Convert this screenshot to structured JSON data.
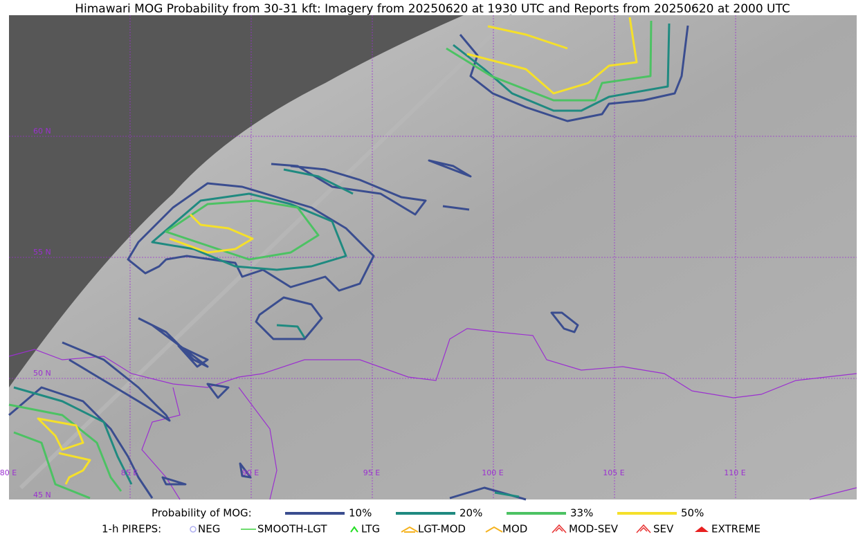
{
  "title": "Himawari MOG Probability from 30-31 kft: Imagery from 20250620 at 1930 UTC and Reports from 20250620 at 2000 UTC",
  "map": {
    "lat_labels": [
      "60 N",
      "55 N",
      "50 N",
      "45 N"
    ],
    "lon_labels": [
      "80 E",
      "85 E",
      "90 E",
      "95 E",
      "100 E",
      "105 E",
      "110 E"
    ]
  },
  "legend": {
    "probability": {
      "label": "Probability of MOG:",
      "items": [
        {
          "label": "10%",
          "color": "#3a4d8f"
        },
        {
          "label": "20%",
          "color": "#1f8a80"
        },
        {
          "label": "33%",
          "color": "#4cc263"
        },
        {
          "label": "50%",
          "color": "#f5e02a"
        }
      ]
    },
    "pireps": {
      "label": "1-h PIREPS:",
      "items": [
        {
          "label": "NEG",
          "color": "#b0b0f0"
        },
        {
          "label": "SMOOTH-LGT",
          "color": "#3ed13e"
        },
        {
          "label": "LTG",
          "color": "#22dd22"
        },
        {
          "label": "LGT-MOD",
          "color": "#f5b21e"
        },
        {
          "label": "MOD",
          "color": "#f5b21e"
        },
        {
          "label": "MOD-SEV",
          "color": "#e83030"
        },
        {
          "label": "SEV",
          "color": "#e83030"
        },
        {
          "label": "EXTREME",
          "color": "#e82020"
        }
      ]
    }
  }
}
